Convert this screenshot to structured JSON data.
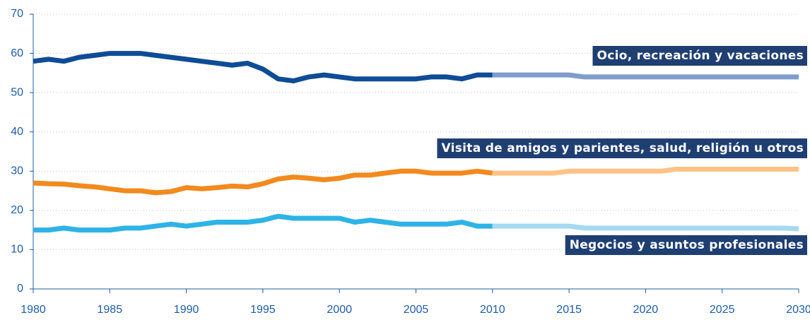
{
  "chart_data": {
    "type": "line",
    "x": [
      1980,
      1981,
      1982,
      1983,
      1984,
      1985,
      1986,
      1987,
      1988,
      1989,
      1990,
      1991,
      1992,
      1993,
      1994,
      1995,
      1996,
      1997,
      1998,
      1999,
      2000,
      2001,
      2002,
      2003,
      2004,
      2005,
      2006,
      2007,
      2008,
      2009,
      2010,
      2011,
      2012,
      2013,
      2014,
      2015,
      2016,
      2017,
      2018,
      2019,
      2020,
      2021,
      2022,
      2023,
      2024,
      2025,
      2026,
      2027,
      2028,
      2029,
      2030
    ],
    "forecast_from": 2010,
    "series": [
      {
        "name": "Ocio, recreación y vacaciones",
        "color": "#0f4c96",
        "forecast_color": "#7f9ccb",
        "values": [
          58,
          58.5,
          58,
          59,
          59.5,
          60,
          60,
          60,
          59.5,
          59,
          58.5,
          58,
          57.5,
          57,
          57.5,
          56,
          53.5,
          53,
          54,
          54.5,
          54,
          53.5,
          53.5,
          53.5,
          53.5,
          53.5,
          54,
          54,
          53.5,
          54.5,
          54.5,
          54.5,
          54.5,
          54.5,
          54.5,
          54.5,
          54,
          54,
          54,
          54,
          54,
          54,
          54,
          54,
          54,
          54,
          54,
          54,
          54,
          54,
          54
        ]
      },
      {
        "name": "Visita de amigos y parientes, salud, religión u otros",
        "color": "#f28a1e",
        "forecast_color": "#fdc386",
        "values": [
          27,
          26.8,
          26.7,
          26.3,
          26,
          25.5,
          25,
          25,
          24.5,
          24.8,
          25.8,
          25.5,
          25.8,
          26.2,
          26,
          26.8,
          28,
          28.5,
          28.2,
          27.8,
          28.2,
          29,
          29,
          29.5,
          30,
          30,
          29.5,
          29.5,
          29.5,
          30,
          29.5,
          29.5,
          29.5,
          29.5,
          29.5,
          30,
          30,
          30,
          30,
          30,
          30,
          30,
          30.5,
          30.5,
          30.5,
          30.5,
          30.5,
          30.5,
          30.5,
          30.5,
          30.5
        ]
      },
      {
        "name": "Negocios y asuntos profesionales",
        "color": "#2eb3e6",
        "forecast_color": "#a6d9f2",
        "values": [
          15,
          15,
          15.5,
          15,
          15,
          15,
          15.5,
          15.5,
          16,
          16.5,
          16,
          16.5,
          17,
          17,
          17,
          17.5,
          18.5,
          18,
          18,
          18,
          18,
          17,
          17.5,
          17,
          16.5,
          16.5,
          16.5,
          16.5,
          17,
          16,
          16,
          16,
          16,
          16,
          16,
          16,
          15.5,
          15.5,
          15.5,
          15.5,
          15.5,
          15.5,
          15.5,
          15.5,
          15.5,
          15.5,
          15.5,
          15.5,
          15.5,
          15.5,
          15.3
        ]
      }
    ],
    "xlim": [
      1980,
      2030
    ],
    "xticks": [
      1980,
      1985,
      1990,
      1995,
      2000,
      2005,
      2010,
      2015,
      2020,
      2025,
      2030
    ],
    "ylim": [
      0,
      70
    ],
    "yticks": [
      0,
      10,
      20,
      30,
      40,
      50,
      60,
      70
    ],
    "grid": true
  }
}
